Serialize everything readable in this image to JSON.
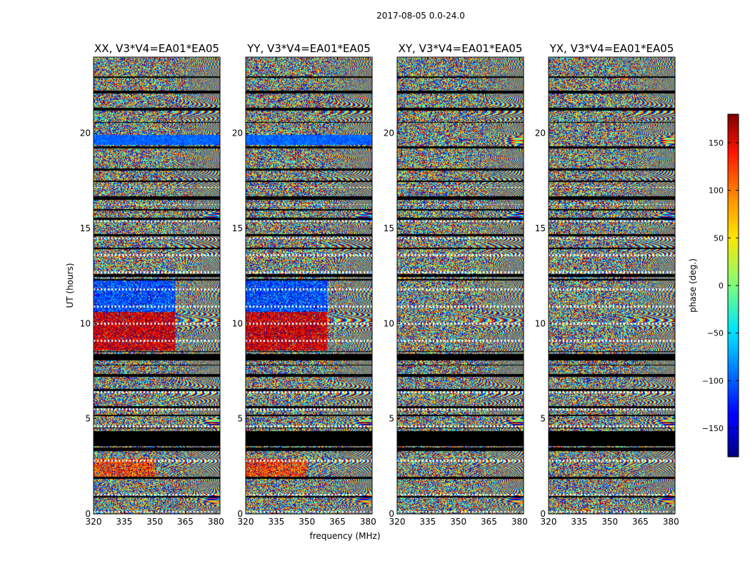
{
  "figure": {
    "suptitle": "2017-08-05 0.0-24.0",
    "xlabel": "frequency (MHz)",
    "ylabel": "UT (hours)"
  },
  "chart_data": {
    "type": "heatmap",
    "title": "2017-08-05 0.0-24.0",
    "xlabel": "frequency (MHz)",
    "ylabel": "UT (hours)",
    "xlim": [
      320,
      382
    ],
    "ylim": [
      0,
      24
    ],
    "xticks": [
      320,
      335,
      350,
      365,
      380
    ],
    "yticks": [
      0,
      5,
      10,
      15,
      20
    ],
    "panels": [
      {
        "title": "XX, V3*V4=EA01*EA05",
        "pol": "XX",
        "coherent": true
      },
      {
        "title": "YY, V3*V4=EA01*EA05",
        "pol": "YY",
        "coherent": true
      },
      {
        "title": "XY, V3*V4=EA01*EA05",
        "pol": "XY",
        "coherent": false
      },
      {
        "title": "YX, V3*V4=EA01*EA05",
        "pol": "YX",
        "coherent": false
      }
    ],
    "colorbar": {
      "label": "phase (deg.)",
      "range": [
        -180,
        180
      ],
      "ticks": [
        -150,
        -100,
        -50,
        0,
        50,
        100,
        150
      ],
      "tick_labels": [
        "−150",
        "−100",
        "−50",
        "0",
        "50",
        "100",
        "150"
      ],
      "colormap": "jet"
    },
    "flagged_ut_hours": [
      [
        0.85,
        0.95
      ],
      [
        1.85,
        1.95
      ],
      [
        3.3,
        3.5
      ],
      [
        3.55,
        4.35
      ],
      [
        4.5,
        4.55
      ],
      [
        5.15,
        5.2
      ],
      [
        5.55,
        5.65
      ],
      [
        6.45,
        6.55
      ],
      [
        7.2,
        7.35
      ],
      [
        7.8,
        7.85
      ],
      [
        8.05,
        8.4
      ],
      [
        8.5,
        8.55
      ],
      [
        12.25,
        12.35
      ],
      [
        12.45,
        12.6
      ],
      [
        13.9,
        14.0
      ],
      [
        14.6,
        14.7
      ],
      [
        15.45,
        15.55
      ],
      [
        15.95,
        16.0
      ],
      [
        16.5,
        16.7
      ],
      [
        17.45,
        17.5
      ],
      [
        18.05,
        18.15
      ],
      [
        19.2,
        19.3
      ],
      [
        20.55,
        20.6
      ],
      [
        21.2,
        21.35
      ],
      [
        22.1,
        22.25
      ],
      [
        22.9,
        23.0
      ]
    ]
  }
}
